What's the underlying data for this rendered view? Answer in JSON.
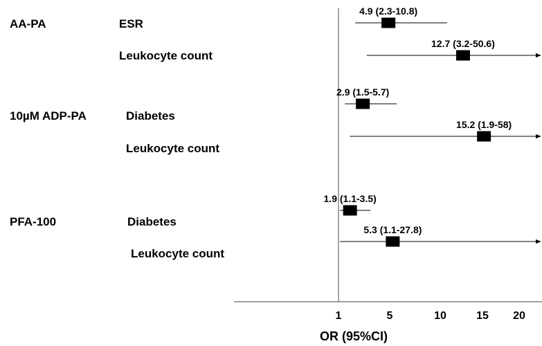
{
  "chart_data": {
    "type": "forest",
    "title": "",
    "xlabel": "OR (95%CI)",
    "ylabel": "",
    "xlim": [
      1,
      22.5
    ],
    "x_ticks": [
      "1",
      "5",
      "10",
      "15",
      "20"
    ],
    "reference_line": 1,
    "groups": [
      {
        "name": "AA-PA",
        "rows": [
          {
            "variable": "ESR",
            "or": 4.9,
            "lo": 2.3,
            "hi": 10.8,
            "label": "4.9 (2.3-10.8)",
            "arrow": false
          },
          {
            "variable": "Leukocyte count",
            "or": 12.7,
            "lo": 3.2,
            "hi": 50.6,
            "label": "12.7 (3.2-50.6)",
            "arrow": true
          }
        ]
      },
      {
        "name": "10µM ADP-PA",
        "rows": [
          {
            "variable": "Diabetes",
            "or": 2.9,
            "lo": 1.5,
            "hi": 5.7,
            "label": "2.9 (1.5-5.7)",
            "arrow": false
          },
          {
            "variable": "Leukocyte count",
            "or": 15.2,
            "lo": 1.9,
            "hi": 58,
            "label": "15.2 (1.9-58)",
            "arrow": true
          }
        ]
      },
      {
        "name": "PFA-100",
        "rows": [
          {
            "variable": "Diabetes",
            "or": 1.9,
            "lo": 1.1,
            "hi": 3.5,
            "label": "1.9 (1.1-3.5)",
            "arrow": false
          },
          {
            "variable": "Leukocyte count",
            "or": 5.3,
            "lo": 1.1,
            "hi": 27.8,
            "label": "5.3 (1.1-27.8)",
            "arrow": true
          }
        ]
      }
    ]
  }
}
